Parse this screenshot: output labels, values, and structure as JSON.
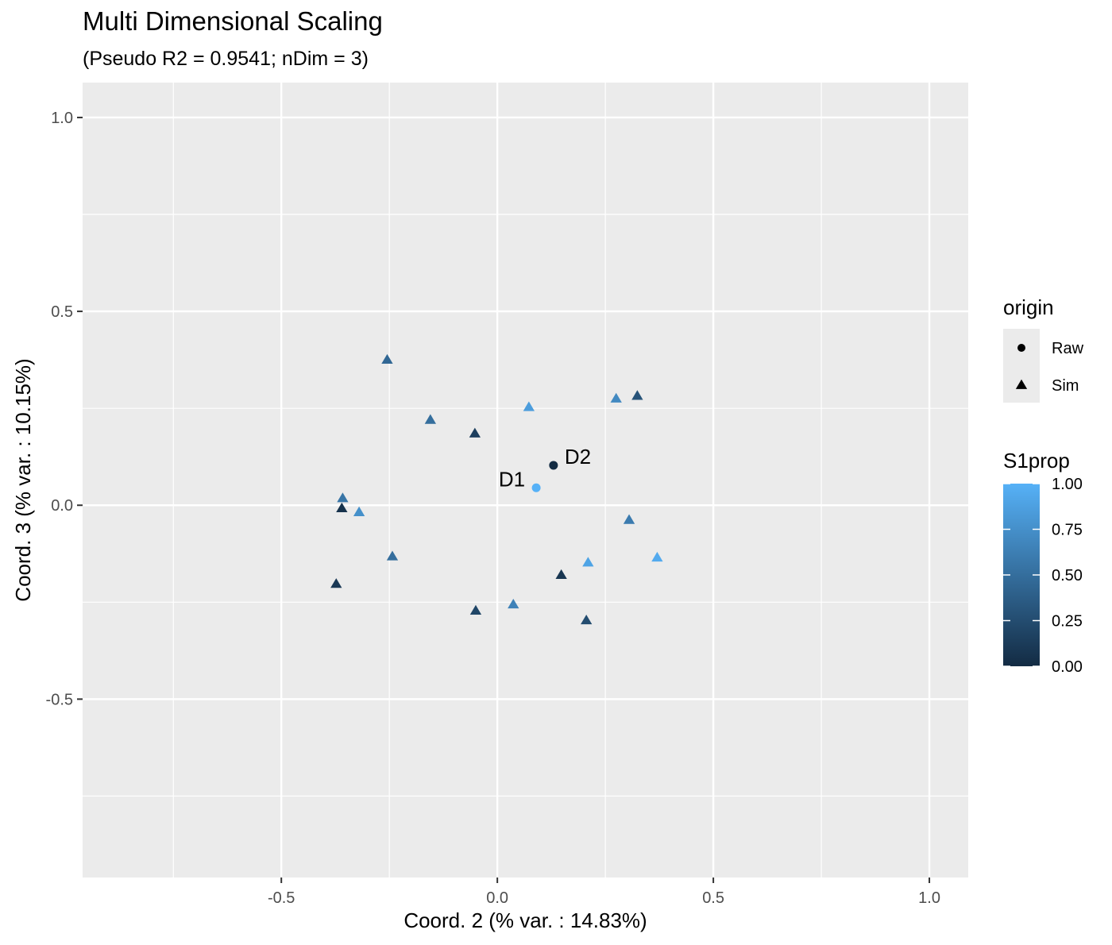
{
  "chart_data": {
    "type": "scatter",
    "title": "Multi Dimensional Scaling",
    "subtitle": "(Pseudo R2 = 0.9541; nDim = 3)",
    "xlabel": "Coord. 2 (% var. : 14.83%)",
    "ylabel": "Coord. 3 (% var. : 10.15%)",
    "xlim": [
      -0.96,
      1.09
    ],
    "ylim": [
      -0.96,
      1.09
    ],
    "x_ticks": [
      -0.5,
      0.0,
      0.5,
      1.0
    ],
    "x_tick_labels": [
      "-0.5",
      "0.0",
      "0.5",
      "1.0"
    ],
    "y_ticks": [
      -0.5,
      0.0,
      0.5,
      1.0
    ],
    "y_tick_labels": [
      "-0.5",
      "0.0",
      "0.5",
      "1.0"
    ],
    "grid": true,
    "colors": {
      "panel_background": "#ebebeb",
      "grid_line": "#ffffff",
      "color_low": "#132b43",
      "color_high": "#56b1f7"
    },
    "legend": {
      "placement": "right",
      "shape_title": "origin",
      "shape_entries": [
        {
          "label": "Raw",
          "shape": "circle"
        },
        {
          "label": "Sim",
          "shape": "triangle"
        }
      ],
      "color_title": "S1prop",
      "color_breaks": [
        1.0,
        0.75,
        0.5,
        0.25,
        0.0
      ],
      "color_break_labels": [
        "1.00",
        "0.75",
        "0.50",
        "0.25",
        "0.00"
      ]
    },
    "points": [
      {
        "x": 0.09,
        "y": 0.045,
        "origin": "Raw",
        "S1prop": 1.0,
        "label": "D1"
      },
      {
        "x": 0.13,
        "y": 0.103,
        "origin": "Raw",
        "S1prop": 0.0,
        "label": "D2"
      },
      {
        "x": -0.255,
        "y": 0.375,
        "origin": "Sim",
        "S1prop": 0.45
      },
      {
        "x": -0.155,
        "y": 0.22,
        "origin": "Sim",
        "S1prop": 0.5
      },
      {
        "x": -0.052,
        "y": 0.185,
        "origin": "Sim",
        "S1prop": 0.15
      },
      {
        "x": 0.073,
        "y": 0.253,
        "origin": "Sim",
        "S1prop": 0.85
      },
      {
        "x": 0.275,
        "y": 0.275,
        "origin": "Sim",
        "S1prop": 0.7
      },
      {
        "x": 0.324,
        "y": 0.282,
        "origin": "Sim",
        "S1prop": 0.3
      },
      {
        "x": -0.358,
        "y": 0.018,
        "origin": "Sim",
        "S1prop": 0.55
      },
      {
        "x": -0.36,
        "y": -0.008,
        "origin": "Sim",
        "S1prop": 0.05
      },
      {
        "x": -0.32,
        "y": -0.018,
        "origin": "Sim",
        "S1prop": 0.75
      },
      {
        "x": 0.305,
        "y": -0.038,
        "origin": "Sim",
        "S1prop": 0.6
      },
      {
        "x": -0.243,
        "y": -0.132,
        "origin": "Sim",
        "S1prop": 0.5
      },
      {
        "x": 0.21,
        "y": -0.148,
        "origin": "Sim",
        "S1prop": 0.9
      },
      {
        "x": 0.37,
        "y": -0.135,
        "origin": "Sim",
        "S1prop": 0.95
      },
      {
        "x": 0.148,
        "y": -0.18,
        "origin": "Sim",
        "S1prop": 0.08
      },
      {
        "x": -0.373,
        "y": -0.203,
        "origin": "Sim",
        "S1prop": 0.1
      },
      {
        "x": -0.05,
        "y": -0.272,
        "origin": "Sim",
        "S1prop": 0.2
      },
      {
        "x": 0.037,
        "y": -0.256,
        "origin": "Sim",
        "S1prop": 0.65
      },
      {
        "x": 0.206,
        "y": -0.297,
        "origin": "Sim",
        "S1prop": 0.25
      }
    ]
  }
}
